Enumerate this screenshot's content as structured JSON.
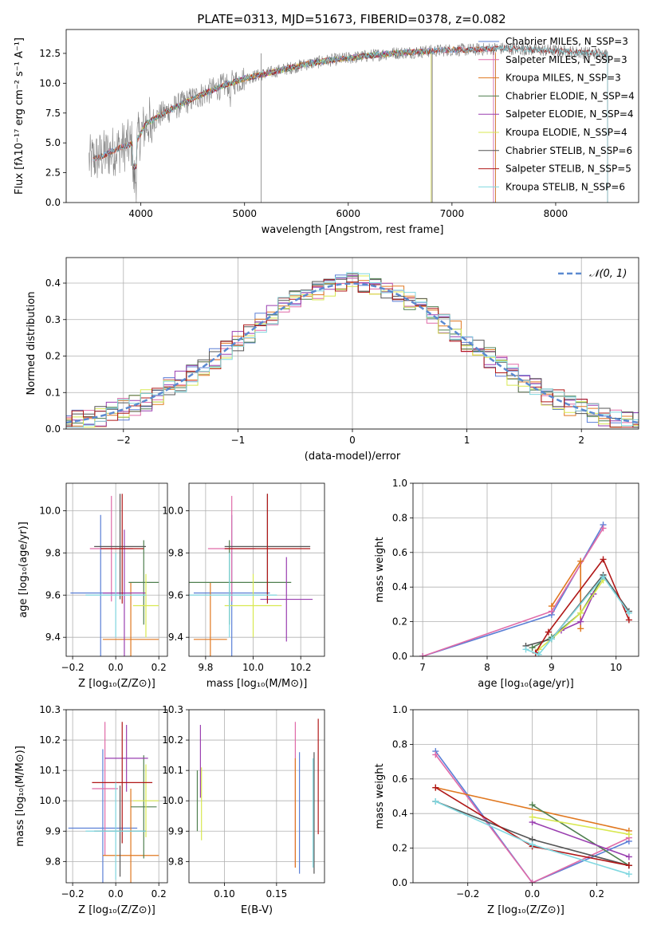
{
  "figure_title": "PLATE=0313, MJD=51673, FIBERID=0378, z=0.082",
  "colors": {
    "Chabrier MILES": "#5b7fd6",
    "Salpeter MILES": "#e06aa8",
    "Kroupa MILES": "#e07820",
    "Chabrier ELODIE": "#4f7f4f",
    "Salpeter ELODIE": "#9a3fb0",
    "Kroupa ELODIE": "#d8e850",
    "Chabrier STELIB": "#555555",
    "Salpeter STELIB": "#b01818",
    "Kroupa STELIB": "#80d8e0",
    "data": "#808080",
    "gaussian": "#5b8ad0"
  },
  "chart_data": [
    {
      "id": "spectrum",
      "type": "line",
      "title": "PLATE=0313, MJD=51673, FIBERID=0378, z=0.082",
      "xlabel": "wavelength [Angstrom, rest frame]",
      "ylabel": "Flux [fλ10⁻¹⁷ erg cm⁻² s⁻¹ A⁻¹]",
      "xlim": [
        3280,
        8800
      ],
      "ylim": [
        0,
        14.5
      ],
      "xticks": [
        4000,
        5000,
        6000,
        7000,
        8000
      ],
      "yticks": [
        0.0,
        2.5,
        5.0,
        7.5,
        10.0,
        12.5
      ],
      "grid": false,
      "legend_position": "right",
      "legend": [
        {
          "label": "Chabrier MILES, N_SSP=3",
          "color_key": "Chabrier MILES"
        },
        {
          "label": "Salpeter MILES, N_SSP=3",
          "color_key": "Salpeter MILES"
        },
        {
          "label": "Kroupa MILES, N_SSP=3",
          "color_key": "Kroupa MILES"
        },
        {
          "label": "Chabrier ELODIE, N_SSP=4",
          "color_key": "Chabrier ELODIE"
        },
        {
          "label": "Salpeter ELODIE, N_SSP=4",
          "color_key": "Salpeter ELODIE"
        },
        {
          "label": "Kroupa ELODIE, N_SSP=4",
          "color_key": "Kroupa ELODIE"
        },
        {
          "label": "Chabrier STELIB, N_SSP=6",
          "color_key": "Chabrier STELIB"
        },
        {
          "label": "Salpeter STELIB, N_SSP=5",
          "color_key": "Salpeter STELIB"
        },
        {
          "label": "Kroupa STELIB, N_SSP=6",
          "color_key": "Kroupa STELIB"
        }
      ],
      "continuum_x": [
        3500,
        3650,
        3800,
        3950,
        4050,
        4200,
        4400,
        4600,
        4800,
        5000,
        5200,
        5400,
        5600,
        5800,
        6000,
        6200,
        6400,
        6600,
        6800,
        7000,
        7200,
        7400,
        7600,
        7800,
        8000,
        8200,
        8400,
        8500
      ],
      "continuum_y": [
        3.5,
        4.0,
        4.6,
        5.0,
        6.6,
        7.4,
        8.3,
        9.1,
        9.8,
        10.4,
        10.8,
        11.2,
        11.6,
        11.9,
        12.1,
        12.3,
        12.5,
        12.6,
        12.7,
        12.8,
        12.8,
        12.9,
        12.9,
        12.8,
        12.7,
        12.6,
        12.5,
        12.4
      ],
      "model_ranges": [
        {
          "color_key": "Chabrier MILES",
          "xmin": 3540,
          "xmax": 7400
        },
        {
          "color_key": "Salpeter MILES",
          "xmin": 3540,
          "xmax": 7400
        },
        {
          "color_key": "Kroupa MILES",
          "xmin": 3540,
          "xmax": 7420
        },
        {
          "color_key": "Chabrier ELODIE",
          "xmin": 3900,
          "xmax": 6800
        },
        {
          "color_key": "Salpeter ELODIE",
          "xmin": 3900,
          "xmax": 6800
        },
        {
          "color_key": "Kroupa ELODIE",
          "xmin": 3900,
          "xmax": 6800
        },
        {
          "color_key": "Chabrier STELIB",
          "xmin": 3540,
          "xmax": 8500
        },
        {
          "color_key": "Salpeter STELIB",
          "xmin": 3540,
          "xmax": 8500
        },
        {
          "color_key": "Kroupa STELIB",
          "xmin": 3540,
          "xmax": 8500
        }
      ]
    },
    {
      "id": "residuals",
      "type": "histogram",
      "xlabel": "(data-model)/error",
      "ylabel": "Normed distribution",
      "xlim": [
        -2.5,
        2.5
      ],
      "ylim": [
        0,
        0.47
      ],
      "xticks": [
        -2,
        -1,
        0,
        1,
        2
      ],
      "yticks": [
        0.0,
        0.1,
        0.2,
        0.3,
        0.4
      ],
      "grid": true,
      "legend_position": "top-right",
      "legend": [
        {
          "label": "𝒩(0, 1)",
          "color_key": "gaussian"
        }
      ],
      "bin_width": 0.1,
      "gaussian": {
        "mean": 0,
        "sigma": 1
      }
    },
    {
      "id": "age-vs-Z",
      "type": "errorbar",
      "xlabel": "Z [log₁₀(Z/Z⊙)]",
      "ylabel": "age  [log₁₀(age/yr)]",
      "xlim": [
        -0.23,
        0.24
      ],
      "ylim": [
        9.31,
        10.13
      ],
      "xticks": [
        -0.2,
        0.0,
        0.2
      ],
      "xticklabels": [
        "−0.2",
        "0.0",
        "0.2"
      ],
      "yticks": [
        9.4,
        9.6,
        9.8,
        10.0
      ],
      "grid": true,
      "points": [
        {
          "color_key": "Chabrier MILES",
          "x": -0.07,
          "y": 9.61,
          "xerr": 0.14,
          "yerr": 0.37
        },
        {
          "color_key": "Salpeter MILES",
          "x": -0.02,
          "y": 9.82,
          "xerr": 0.1,
          "yerr": 0.25
        },
        {
          "color_key": "Kroupa MILES",
          "x": 0.07,
          "y": 9.39,
          "xerr": 0.13,
          "yerr": 0.27
        },
        {
          "color_key": "Chabrier ELODIE",
          "x": 0.13,
          "y": 9.66,
          "xerr": 0.07,
          "yerr": 0.2
        },
        {
          "color_key": "Salpeter ELODIE",
          "x": 0.04,
          "y": 9.61,
          "xerr": 0.1,
          "yerr": 0.3
        },
        {
          "color_key": "Kroupa ELODIE",
          "x": 0.14,
          "y": 9.55,
          "xerr": 0.06,
          "yerr": 0.15
        },
        {
          "color_key": "Chabrier STELIB",
          "x": 0.02,
          "y": 9.83,
          "xerr": 0.12,
          "yerr": 0.25
        },
        {
          "color_key": "Salpeter STELIB",
          "x": 0.03,
          "y": 9.82,
          "xerr": 0.1,
          "yerr": 0.26
        },
        {
          "color_key": "Kroupa STELIB",
          "x": 0.0,
          "y": 9.6,
          "xerr": 0.14,
          "yerr": 0.2
        }
      ]
    },
    {
      "id": "age-vs-mass",
      "type": "errorbar",
      "xlabel": "mass [log₁₀(M/M⊙)]",
      "ylabel": "",
      "xlim": [
        9.73,
        10.3
      ],
      "ylim": [
        9.31,
        10.13
      ],
      "xticks": [
        9.8,
        10.0,
        10.2
      ],
      "xticklabels": [
        "9.8",
        "10.0",
        "10.2"
      ],
      "yticks": [
        9.4,
        9.6,
        9.8,
        10.0
      ],
      "grid": true,
      "points": [
        {
          "color_key": "Chabrier MILES",
          "x": 9.91,
          "y": 9.61,
          "xerr": 0.16,
          "yerr": 0.37
        },
        {
          "color_key": "Salpeter MILES",
          "x": 9.91,
          "y": 9.82,
          "xerr": 0.1,
          "yerr": 0.25
        },
        {
          "color_key": "Kroupa MILES",
          "x": 9.82,
          "y": 9.39,
          "xerr": 0.07,
          "yerr": 0.27
        },
        {
          "color_key": "Chabrier ELODIE",
          "x": 9.9,
          "y": 9.66,
          "xerr": 0.26,
          "yerr": 0.2
        },
        {
          "color_key": "Salpeter ELODIE",
          "x": 10.14,
          "y": 9.58,
          "xerr": 0.11,
          "yerr": 0.2
        },
        {
          "color_key": "Kroupa ELODIE",
          "x": 10.0,
          "y": 9.55,
          "xerr": 0.12,
          "yerr": 0.15
        },
        {
          "color_key": "Chabrier STELIB",
          "x": 10.06,
          "y": 9.83,
          "xerr": 0.18,
          "yerr": 0.25
        },
        {
          "color_key": "Salpeter STELIB",
          "x": 10.06,
          "y": 9.82,
          "xerr": 0.18,
          "yerr": 0.26
        },
        {
          "color_key": "Kroupa STELIB",
          "x": 9.9,
          "y": 9.6,
          "xerr": 0.2,
          "yerr": 0.2
        }
      ]
    },
    {
      "id": "weight-vs-age",
      "type": "line",
      "xlabel": "age  [log₁₀(age/yr)]",
      "ylabel": "mass weight",
      "xlim": [
        6.85,
        10.35
      ],
      "ylim": [
        0,
        1.0
      ],
      "xticks": [
        7,
        8,
        9,
        10
      ],
      "xticklabels": [
        "7",
        "8",
        "9",
        "10"
      ],
      "yticks": [
        0.0,
        0.2,
        0.4,
        0.6,
        0.8,
        1.0
      ],
      "grid": true,
      "series": [
        {
          "color_key": "Chabrier MILES",
          "x": [
            7.0,
            9.0,
            9.8
          ],
          "y": [
            0.0,
            0.24,
            0.76
          ]
        },
        {
          "color_key": "Salpeter MILES",
          "x": [
            7.0,
            9.0,
            9.8
          ],
          "y": [
            0.0,
            0.26,
            0.74
          ]
        },
        {
          "color_key": "Kroupa MILES",
          "x": [
            9.0,
            9.45,
            9.45
          ],
          "y": [
            0.29,
            0.55,
            0.16
          ]
        },
        {
          "color_key": "Chabrier ELODIE",
          "x": [
            8.7,
            9.0,
            9.45,
            9.8
          ],
          "y": [
            0.05,
            0.11,
            0.25,
            0.46
          ]
        },
        {
          "color_key": "Salpeter ELODIE",
          "x": [
            9.15,
            9.45,
            9.65
          ],
          "y": [
            0.15,
            0.2,
            0.36
          ]
        },
        {
          "color_key": "Kroupa ELODIE",
          "x": [
            8.8,
            9.0,
            9.45,
            9.8
          ],
          "y": [
            0.04,
            0.1,
            0.25,
            0.44
          ]
        },
        {
          "color_key": "Chabrier STELIB",
          "x": [
            8.6,
            9.0,
            9.8,
            10.2
          ],
          "y": [
            0.06,
            0.1,
            0.47,
            0.26
          ]
        },
        {
          "color_key": "Salpeter STELIB",
          "x": [
            8.75,
            8.95,
            9.8,
            10.2
          ],
          "y": [
            0.02,
            0.14,
            0.56,
            0.21
          ]
        },
        {
          "color_key": "Kroupa STELIB",
          "x": [
            8.6,
            8.8,
            9.0,
            9.8,
            10.2
          ],
          "y": [
            0.04,
            0.01,
            0.1,
            0.46,
            0.25
          ]
        }
      ]
    },
    {
      "id": "mass-vs-Z",
      "type": "errorbar",
      "xlabel": "Z [log₁₀(Z/Z⊙)]",
      "ylabel": "mass [log₁₀(M/M⊙)]",
      "xlim": [
        -0.23,
        0.24
      ],
      "ylim": [
        9.73,
        10.3
      ],
      "xticks": [
        -0.2,
        0.0,
        0.2
      ],
      "xticklabels": [
        "−0.2",
        "0.0",
        "0.2"
      ],
      "yticks": [
        9.8,
        9.9,
        10.0,
        10.1,
        10.2,
        10.3
      ],
      "grid": true,
      "points": [
        {
          "color_key": "Chabrier MILES",
          "x": -0.06,
          "y": 9.91,
          "xerr": 0.16,
          "yerr": 0.26
        },
        {
          "color_key": "Salpeter MILES",
          "x": -0.05,
          "y": 10.04,
          "xerr": 0.06,
          "yerr": 0.22
        },
        {
          "color_key": "Kroupa MILES",
          "x": 0.07,
          "y": 9.82,
          "xerr": 0.13,
          "yerr": 0.22
        },
        {
          "color_key": "Chabrier ELODIE",
          "x": 0.13,
          "y": 9.98,
          "xerr": 0.06,
          "yerr": 0.17
        },
        {
          "color_key": "Salpeter ELODIE",
          "x": 0.05,
          "y": 10.14,
          "xerr": 0.1,
          "yerr": 0.11
        },
        {
          "color_key": "Kroupa ELODIE",
          "x": 0.14,
          "y": 10.0,
          "xerr": 0.06,
          "yerr": 0.12
        },
        {
          "color_key": "Chabrier STELIB",
          "x": 0.02,
          "y": 9.9,
          "xerr": 0.12,
          "yerr": 0.15
        },
        {
          "color_key": "Salpeter STELIB",
          "x": 0.03,
          "y": 10.06,
          "xerr": 0.14,
          "yerr": 0.2
        },
        {
          "color_key": "Kroupa STELIB",
          "x": 0.0,
          "y": 9.9,
          "xerr": 0.14,
          "yerr": 0.16
        }
      ]
    },
    {
      "id": "mass-vs-ebv",
      "type": "errorbar",
      "xlabel": "E(B-V)",
      "ylabel": "",
      "xlim": [
        0.066,
        0.196
      ],
      "ylim": [
        9.73,
        10.3
      ],
      "xticks": [
        0.1,
        0.15
      ],
      "xticklabels": [
        "0.10",
        "0.15"
      ],
      "yticks": [
        9.8,
        9.9,
        10.0,
        10.1,
        10.2,
        10.3
      ],
      "grid": true,
      "points": [
        {
          "color_key": "Chabrier MILES",
          "x": 0.172,
          "y": 9.96,
          "xerr": 0.0,
          "yerr": 0.2
        },
        {
          "color_key": "Salpeter MILES",
          "x": 0.168,
          "y": 10.02,
          "xerr": 0.0,
          "yerr": 0.24
        },
        {
          "color_key": "Kroupa MILES",
          "x": 0.168,
          "y": 9.96,
          "xerr": 0.0,
          "yerr": 0.18
        },
        {
          "color_key": "Chabrier ELODIE",
          "x": 0.074,
          "y": 10.0,
          "xerr": 0.0,
          "yerr": 0.1
        },
        {
          "color_key": "Salpeter ELODIE",
          "x": 0.077,
          "y": 10.13,
          "xerr": 0.0,
          "yerr": 0.12
        },
        {
          "color_key": "Kroupa ELODIE",
          "x": 0.078,
          "y": 9.99,
          "xerr": 0.0,
          "yerr": 0.12
        },
        {
          "color_key": "Chabrier STELIB",
          "x": 0.186,
          "y": 9.96,
          "xerr": 0.0,
          "yerr": 0.2
        },
        {
          "color_key": "Salpeter STELIB",
          "x": 0.19,
          "y": 10.08,
          "xerr": 0.0,
          "yerr": 0.19
        },
        {
          "color_key": "Kroupa STELIB",
          "x": 0.185,
          "y": 9.96,
          "xerr": 0.0,
          "yerr": 0.18
        }
      ]
    },
    {
      "id": "weight-vs-Z",
      "type": "line",
      "xlabel": "Z [log₁₀(Z/Z⊙)]",
      "ylabel": "mass weight",
      "xlim": [
        -0.37,
        0.33
      ],
      "ylim": [
        0,
        1.0
      ],
      "xticks": [
        -0.2,
        0.0,
        0.2
      ],
      "xticklabels": [
        "−0.2",
        "0.0",
        "0.2"
      ],
      "yticks": [
        0.0,
        0.2,
        0.4,
        0.6,
        0.8,
        1.0
      ],
      "grid": true,
      "series": [
        {
          "color_key": "Chabrier MILES",
          "x": [
            -0.3,
            0.0,
            0.3
          ],
          "y": [
            0.76,
            0.0,
            0.24
          ]
        },
        {
          "color_key": "Salpeter MILES",
          "x": [
            -0.3,
            0.0,
            0.3
          ],
          "y": [
            0.74,
            0.0,
            0.26
          ]
        },
        {
          "color_key": "Kroupa MILES",
          "x": [
            -0.3,
            0.3
          ],
          "y": [
            0.55,
            0.3
          ]
        },
        {
          "color_key": "Chabrier ELODIE",
          "x": [
            0.0,
            0.3
          ],
          "y": [
            0.45,
            0.1
          ]
        },
        {
          "color_key": "Salpeter ELODIE",
          "x": [
            0.0,
            0.3
          ],
          "y": [
            0.35,
            0.15
          ]
        },
        {
          "color_key": "Kroupa ELODIE",
          "x": [
            0.0,
            0.3
          ],
          "y": [
            0.38,
            0.28
          ]
        },
        {
          "color_key": "Chabrier STELIB",
          "x": [
            -0.3,
            0.0,
            0.3
          ],
          "y": [
            0.47,
            0.25,
            0.1
          ]
        },
        {
          "color_key": "Salpeter STELIB",
          "x": [
            -0.3,
            0.0,
            0.3
          ],
          "y": [
            0.55,
            0.21,
            0.1
          ]
        },
        {
          "color_key": "Kroupa STELIB",
          "x": [
            -0.3,
            0.0,
            0.3
          ],
          "y": [
            0.47,
            0.22,
            0.05
          ]
        }
      ]
    }
  ]
}
